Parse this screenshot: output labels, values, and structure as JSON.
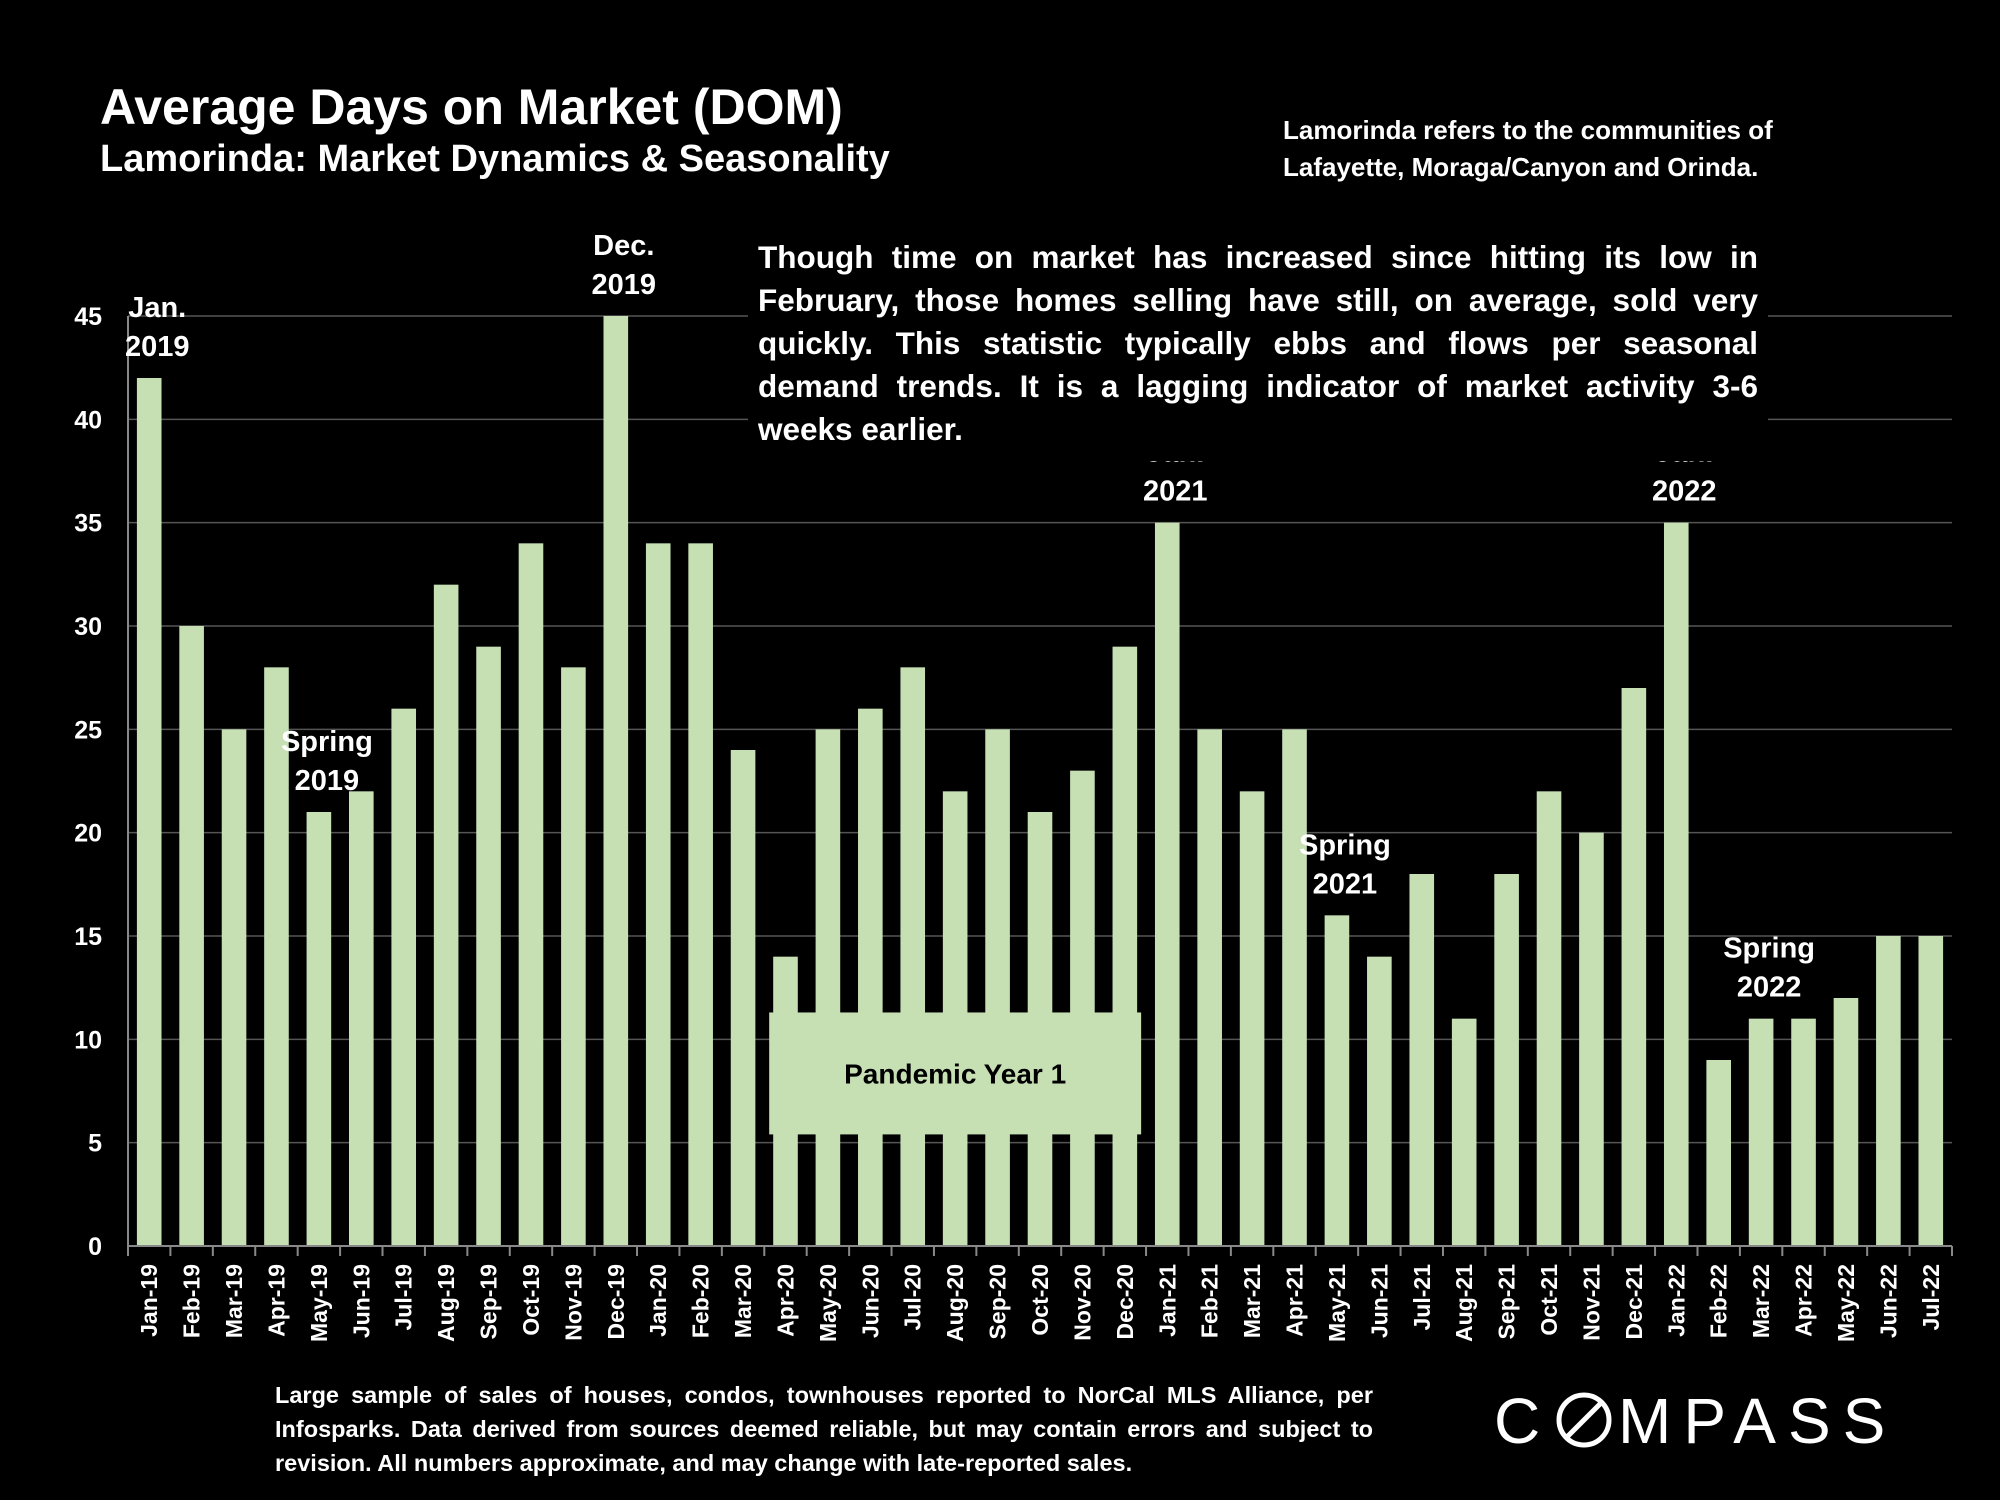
{
  "header": {
    "title": "Average Days on Market (DOM)",
    "subtitle": "Lamorinda: Market Dynamics & Seasonality",
    "note_line1": "Lamorinda refers to the communities of",
    "note_line2": "Lafayette, Moraga/Canyon and Orinda."
  },
  "commentary": "Though time on market has increased since hitting its low in February, those homes selling have still, on average, sold very quickly. This statistic typically ebbs and flows per seasonal demand trends. It is a lagging indicator of market activity 3-6 weeks earlier.",
  "footer": "Large sample of sales of houses, condos, townhouses reported to NorCal MLS Alliance, per Infosparks. Data derived from sources deemed reliable, but may contain errors and subject to revision. All numbers approximate, and may change with late-reported sales.",
  "logo": {
    "text": "COMPASS",
    "icon": "compass-logo-o-icon"
  },
  "colors": {
    "background": "#000000",
    "bar": "#c6e0b4",
    "grid": "#555555",
    "text": "#ffffff"
  },
  "chart_data": {
    "type": "bar",
    "title": "Average Days on Market (DOM)",
    "xlabel": "",
    "ylabel": "",
    "ylim": [
      0,
      45
    ],
    "yticks": [
      0,
      5,
      10,
      15,
      20,
      25,
      30,
      35,
      40,
      45
    ],
    "grid": true,
    "categories": [
      "Jan-19",
      "Feb-19",
      "Mar-19",
      "Apr-19",
      "May-19",
      "Jun-19",
      "Jul-19",
      "Aug-19",
      "Sep-19",
      "Oct-19",
      "Nov-19",
      "Dec-19",
      "Jan-20",
      "Feb-20",
      "Mar-20",
      "Apr-20",
      "May-20",
      "Jun-20",
      "Jul-20",
      "Aug-20",
      "Sep-20",
      "Oct-20",
      "Nov-20",
      "Dec-20",
      "Jan-21",
      "Feb-21",
      "Mar-21",
      "Apr-21",
      "May-21",
      "Jun-21",
      "Jul-21",
      "Aug-21",
      "Sep-21",
      "Oct-21",
      "Nov-21",
      "Dec-21",
      "Jan-22",
      "Feb-22",
      "Mar-22",
      "Apr-22",
      "May-22",
      "Jun-22",
      "Jul-22"
    ],
    "values": [
      42,
      30,
      25,
      28,
      21,
      22,
      26,
      32,
      29,
      34,
      28,
      45,
      34,
      34,
      24,
      14,
      25,
      26,
      28,
      22,
      25,
      21,
      23,
      29,
      35,
      25,
      22,
      25,
      16,
      14,
      18,
      11,
      18,
      22,
      20,
      27,
      35,
      9,
      11,
      11,
      12,
      15,
      15
    ],
    "annotations": [
      {
        "lines": [
          "Jan.",
          "2019"
        ],
        "category": "Jan-19"
      },
      {
        "lines": [
          "Dec.",
          "2019"
        ],
        "category": "Dec-19"
      },
      {
        "lines": [
          "Spring",
          "2019"
        ],
        "category": "May-19"
      },
      {
        "lines": [
          "Jan.",
          "2021"
        ],
        "category": "Jan-21"
      },
      {
        "lines": [
          "Spring",
          "2021"
        ],
        "category": "May-21"
      },
      {
        "lines": [
          "Jan.",
          "2022"
        ],
        "category": "Jan-22"
      },
      {
        "lines": [
          "Spring",
          "2022"
        ],
        "category": "Mar-22"
      }
    ],
    "band_label": {
      "text": "Pandemic Year 1",
      "from": "Apr-20",
      "to": "Dec-20"
    }
  }
}
